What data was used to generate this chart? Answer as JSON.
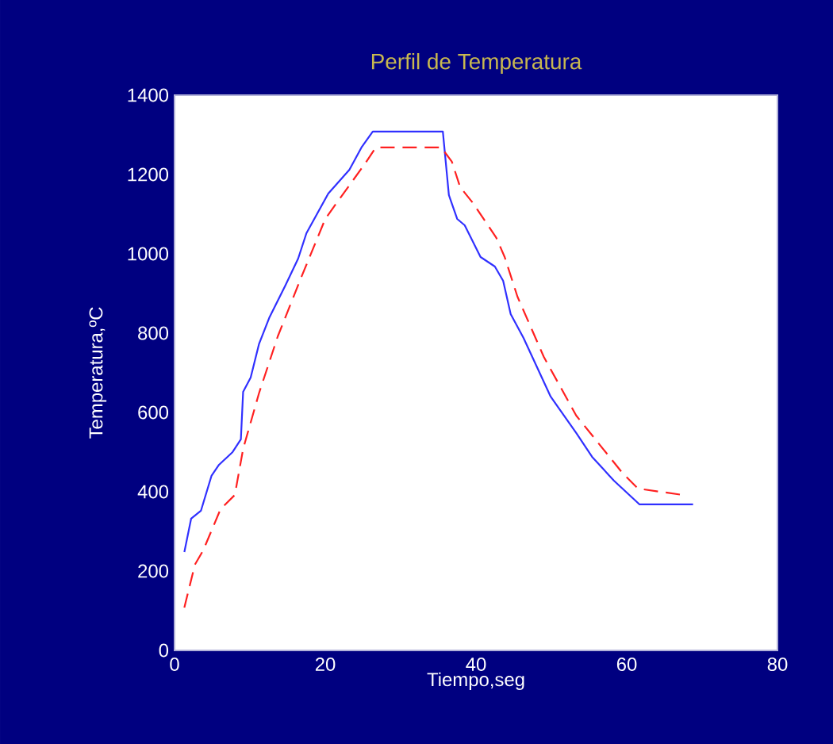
{
  "chart_data": {
    "type": "line",
    "title": "Perfil de Temperatura",
    "xlabel": "Tiempo,seg",
    "ylabel": "Temperatura,ºC",
    "xlim": [
      0,
      80
    ],
    "xticks": [
      0,
      20,
      40,
      60,
      80
    ],
    "ylim": [
      0,
      1400
    ],
    "yticks": [
      0,
      200,
      400,
      600,
      800,
      1000,
      1200,
      1400
    ],
    "grid": false,
    "series": [
      {
        "color": "#3030ff",
        "line_style": "solid",
        "x": [
          1.3,
          2.2,
          3.5,
          4.9,
          5.9,
          7.7,
          8.8,
          9.1,
          10.1,
          11.2,
          12.6,
          14.7,
          16.4,
          17.5,
          20.4,
          23.2,
          24.8,
          26.3,
          35.6,
          36.4,
          37.5,
          38.5,
          40.6,
          42.5,
          43.6,
          44.6,
          46.3,
          49.9,
          53.3,
          55.4,
          58.3,
          61.7,
          68.8
        ],
        "values": [
          248,
          332,
          352,
          440,
          468,
          500,
          532,
          652,
          688,
          772,
          840,
          920,
          988,
          1052,
          1152,
          1212,
          1268,
          1308,
          1308,
          1148,
          1088,
          1072,
          992,
          968,
          932,
          848,
          788,
          640,
          548,
          488,
          428,
          368,
          368
        ]
      },
      {
        "color": "#ff2020",
        "line_style": "dashed",
        "x": [
          1.3,
          2.7,
          3.8,
          6.1,
          8.0,
          9.1,
          11.2,
          13.7,
          16.8,
          20.0,
          21.5,
          25.3,
          26.7,
          35.4,
          36.8,
          37.9,
          39.6,
          42.7,
          43.8,
          45.5,
          49.0,
          53.3,
          59.4,
          61.5,
          67.4
        ],
        "values": [
          108,
          216,
          252,
          356,
          392,
          508,
          648,
          792,
          940,
          1088,
          1128,
          1228,
          1268,
          1268,
          1232,
          1168,
          1128,
          1040,
          992,
          892,
          740,
          592,
          448,
          408,
          392
        ]
      }
    ]
  }
}
